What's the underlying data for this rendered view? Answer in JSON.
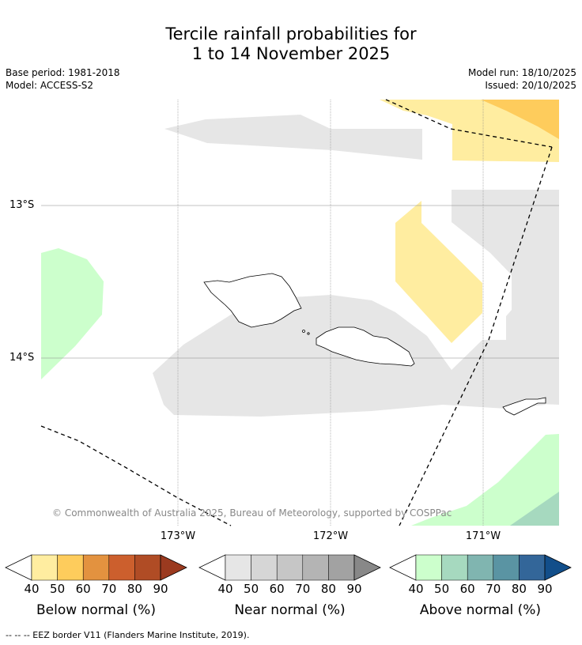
{
  "title_line1": "Tercile rainfall probabilities for",
  "title_line2": "1 to 14 November 2025",
  "base_period": "Base period: 1981-2018",
  "model": "Model: ACCESS-S2",
  "model_run": "Model run: 18/10/2025",
  "issued": "Issued: 20/10/2025",
  "lat_labels": [
    "13°S",
    "14°S"
  ],
  "lon_labels": [
    "173°W",
    "172°W",
    "171°W"
  ],
  "copyright": "© Commonwealth of Australia 2025, Bureau of Meteorology, supported by COSPPac",
  "colorbars": [
    {
      "title": "Below normal (%)",
      "ticks": [
        "40",
        "50",
        "60",
        "70",
        "80",
        "90"
      ],
      "colors": [
        "#ffeda0",
        "#fecc5c",
        "#e3923f",
        "#cc5f2d",
        "#b04c25",
        "#9b3a1f"
      ]
    },
    {
      "title": "Near normal (%)",
      "ticks": [
        "40",
        "50",
        "60",
        "70",
        "80",
        "90"
      ],
      "colors": [
        "#e6e6e6",
        "#d6d6d6",
        "#c6c6c6",
        "#b4b4b4",
        "#a2a2a2",
        "#888888"
      ]
    },
    {
      "title": "Above normal (%)",
      "ticks": [
        "40",
        "50",
        "60",
        "70",
        "80",
        "90"
      ],
      "colors": [
        "#ccffcc",
        "#a6d9bf",
        "#80b5b0",
        "#5a94a3",
        "#336699",
        "#124e8a"
      ]
    }
  ],
  "footer": "--  --  -- EEZ border V11 (Flanders Marine Institute, 2019).",
  "region_colors": {
    "below_40": "#ffeda0",
    "below_50": "#fecc5c",
    "near_40": "#e6e6e6",
    "above_40": "#ccffcc",
    "above_50": "#a6d9bf"
  }
}
